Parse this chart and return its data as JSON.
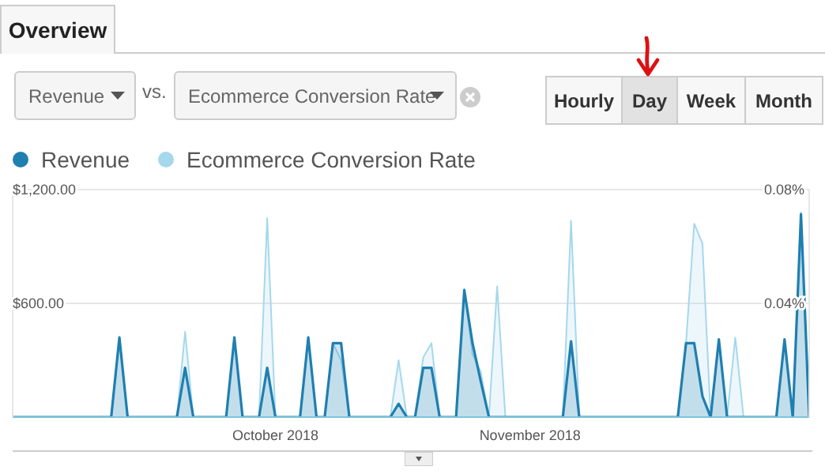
{
  "chart_data": {
    "type": "area",
    "annotations": [
      "Overview",
      "Revenue",
      "vs.",
      "Ecommerce Conversion Rate",
      "Hourly",
      "Day",
      "Week",
      "Month"
    ],
    "x": [
      "2018-08-30",
      "2018-09-11",
      "2018-09-12",
      "2018-09-13",
      "2018-09-19",
      "2018-09-20",
      "2018-09-21",
      "2018-09-25",
      "2018-09-26",
      "2018-09-27",
      "2018-09-29",
      "2018-09-30",
      "2018-10-01",
      "2018-10-04",
      "2018-10-05",
      "2018-10-06",
      "2018-10-07",
      "2018-10-08",
      "2018-10-09",
      "2018-10-10",
      "2018-10-15",
      "2018-10-16",
      "2018-10-17",
      "2018-10-18",
      "2018-10-19",
      "2018-10-20",
      "2018-10-21",
      "2018-10-23",
      "2018-10-24",
      "2018-10-25",
      "2018-10-26",
      "2018-10-27",
      "2018-10-28",
      "2018-10-29",
      "2018-11-05",
      "2018-11-06",
      "2018-11-07",
      "2018-11-19",
      "2018-11-20",
      "2018-11-21",
      "2018-11-22",
      "2018-11-23",
      "2018-11-24",
      "2018-11-25",
      "2018-11-26",
      "2018-11-27",
      "2018-12-01",
      "2018-12-02",
      "2018-12-03",
      "2018-12-04",
      "2018-12-05"
    ],
    "series": [
      {
        "name": "Revenue",
        "color": "#1f7fb0",
        "values": [
          0,
          0,
          420,
          0,
          0,
          260,
          0,
          0,
          420,
          0,
          0,
          260,
          0,
          0,
          420,
          0,
          0,
          390,
          390,
          0,
          0,
          70,
          0,
          0,
          260,
          260,
          0,
          0,
          670,
          390,
          190,
          0,
          0,
          0,
          0,
          400,
          0,
          0,
          390,
          390,
          110,
          0,
          410,
          0,
          0,
          0,
          0,
          410,
          0,
          1070,
          0
        ]
      },
      {
        "name": "Ecommerce Conversion Rate",
        "color": "#a5d8ec",
        "axis": "y2",
        "values": [
          0,
          0,
          0.028,
          0,
          0,
          0.03,
          0,
          0,
          0.028,
          0,
          0,
          0.07,
          0,
          0,
          0.028,
          0,
          0,
          0.026,
          0.02,
          0,
          0,
          0.02,
          0,
          0,
          0.021,
          0.026,
          0,
          0,
          0.045,
          0.022,
          0.016,
          0,
          0.046,
          0,
          0,
          0.069,
          0,
          0,
          0.026,
          0.068,
          0.061,
          0,
          0.027,
          0,
          0.028,
          0,
          0,
          0.027,
          0,
          0.072,
          0
        ]
      }
    ],
    "xlim": [
      "2018-08-30",
      "2018-12-05"
    ],
    "xticks": [
      {
        "value": "2018-10-01",
        "label": "October 2018"
      },
      {
        "value": "2018-11-01",
        "label": "November 2018"
      }
    ],
    "ylim": [
      0,
      1200
    ],
    "yticks": [
      {
        "value": 0,
        "label": null
      },
      {
        "value": 600,
        "label": "$600.00"
      },
      {
        "value": 1200,
        "label": "$1,200.00"
      }
    ],
    "y2lim": [
      0,
      0.08
    ],
    "y2ticks": [
      {
        "value": 0,
        "label": null
      },
      {
        "value": 0.04,
        "label": "0.04%"
      },
      {
        "value": 0.08,
        "label": "0.08%"
      }
    ],
    "grid": "y",
    "legend": "top left"
  }
}
